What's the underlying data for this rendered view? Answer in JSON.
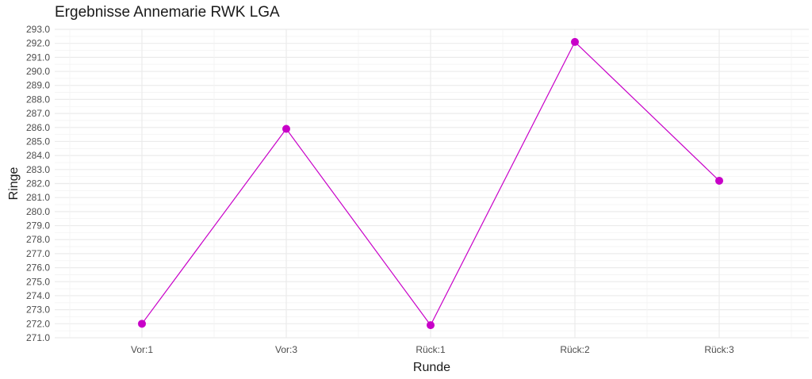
{
  "chart_data": {
    "type": "line",
    "title": "Ergebnisse Annemarie RWK LGA",
    "xlabel": "Runde",
    "ylabel": "Ringe",
    "categories": [
      "Vor:1",
      "Vor:3",
      "Rück:1",
      "Rück:2",
      "Rück:3"
    ],
    "series": [
      {
        "values": [
          272.0,
          285.9,
          271.9,
          292.1,
          282.2
        ]
      }
    ],
    "ylim": [
      271.0,
      293.0
    ],
    "yticks": [
      "271.0",
      "272.0",
      "273.0",
      "274.0",
      "275.0",
      "276.0",
      "277.0",
      "278.0",
      "279.0",
      "280.0",
      "281.0",
      "282.0",
      "283.0",
      "284.0",
      "285.0",
      "286.0",
      "287.0",
      "288.0",
      "289.0",
      "290.0",
      "291.0",
      "292.0",
      "293.0"
    ],
    "grid": true,
    "legend": "none",
    "colors": {
      "line": "#c800c8",
      "grid": "#ebebeb",
      "background": "#ffffff"
    }
  }
}
